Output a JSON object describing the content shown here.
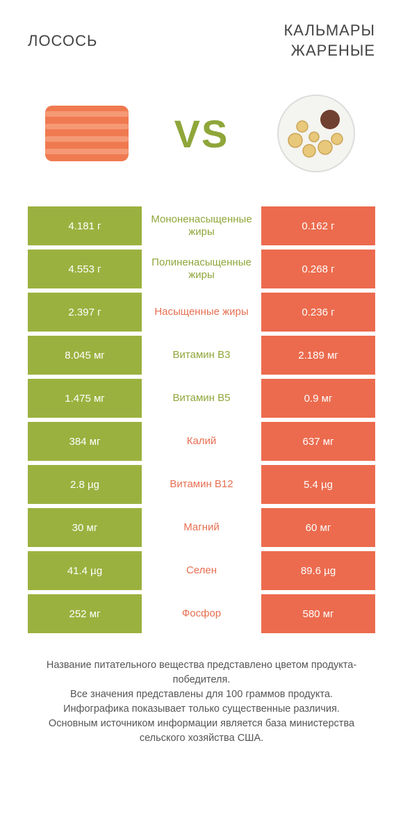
{
  "colors": {
    "green": "#9bb13f",
    "orange": "#ec6b4e",
    "vs": "#8fa63a",
    "label_green": "#8fa63a",
    "label_orange": "#e76f51"
  },
  "header": {
    "left_title": "ЛОСОСЬ",
    "right_title": "КАЛЬМАРЫ ЖАРЕНЫЕ"
  },
  "vs_text": "VS",
  "rows": [
    {
      "left": "4.181 г",
      "label": "Мононенасыщенные жиры",
      "right": "0.162 г",
      "winner": "left"
    },
    {
      "left": "4.553 г",
      "label": "Полиненасыщенные жиры",
      "right": "0.268 г",
      "winner": "left"
    },
    {
      "left": "2.397 г",
      "label": "Насыщенные жиры",
      "right": "0.236 г",
      "winner": "right"
    },
    {
      "left": "8.045 мг",
      "label": "Витамин B3",
      "right": "2.189 мг",
      "winner": "left"
    },
    {
      "left": "1.475 мг",
      "label": "Витамин B5",
      "right": "0.9 мг",
      "winner": "left"
    },
    {
      "left": "384 мг",
      "label": "Калий",
      "right": "637 мг",
      "winner": "right"
    },
    {
      "left": "2.8 µg",
      "label": "Витамин B12",
      "right": "5.4 µg",
      "winner": "right"
    },
    {
      "left": "30 мг",
      "label": "Магний",
      "right": "60 мг",
      "winner": "right"
    },
    {
      "left": "41.4 µg",
      "label": "Селен",
      "right": "89.6 µg",
      "winner": "right"
    },
    {
      "left": "252 мг",
      "label": "Фосфор",
      "right": "580 мг",
      "winner": "right"
    }
  ],
  "footer_lines": [
    "Название питательного вещества представлено цветом продукта-победителя.",
    "Все значения представлены для 100 граммов продукта.",
    "Инфографика показывает только существенные различия.",
    "Основным источником информации является база министерства сельского хозяйства США."
  ]
}
